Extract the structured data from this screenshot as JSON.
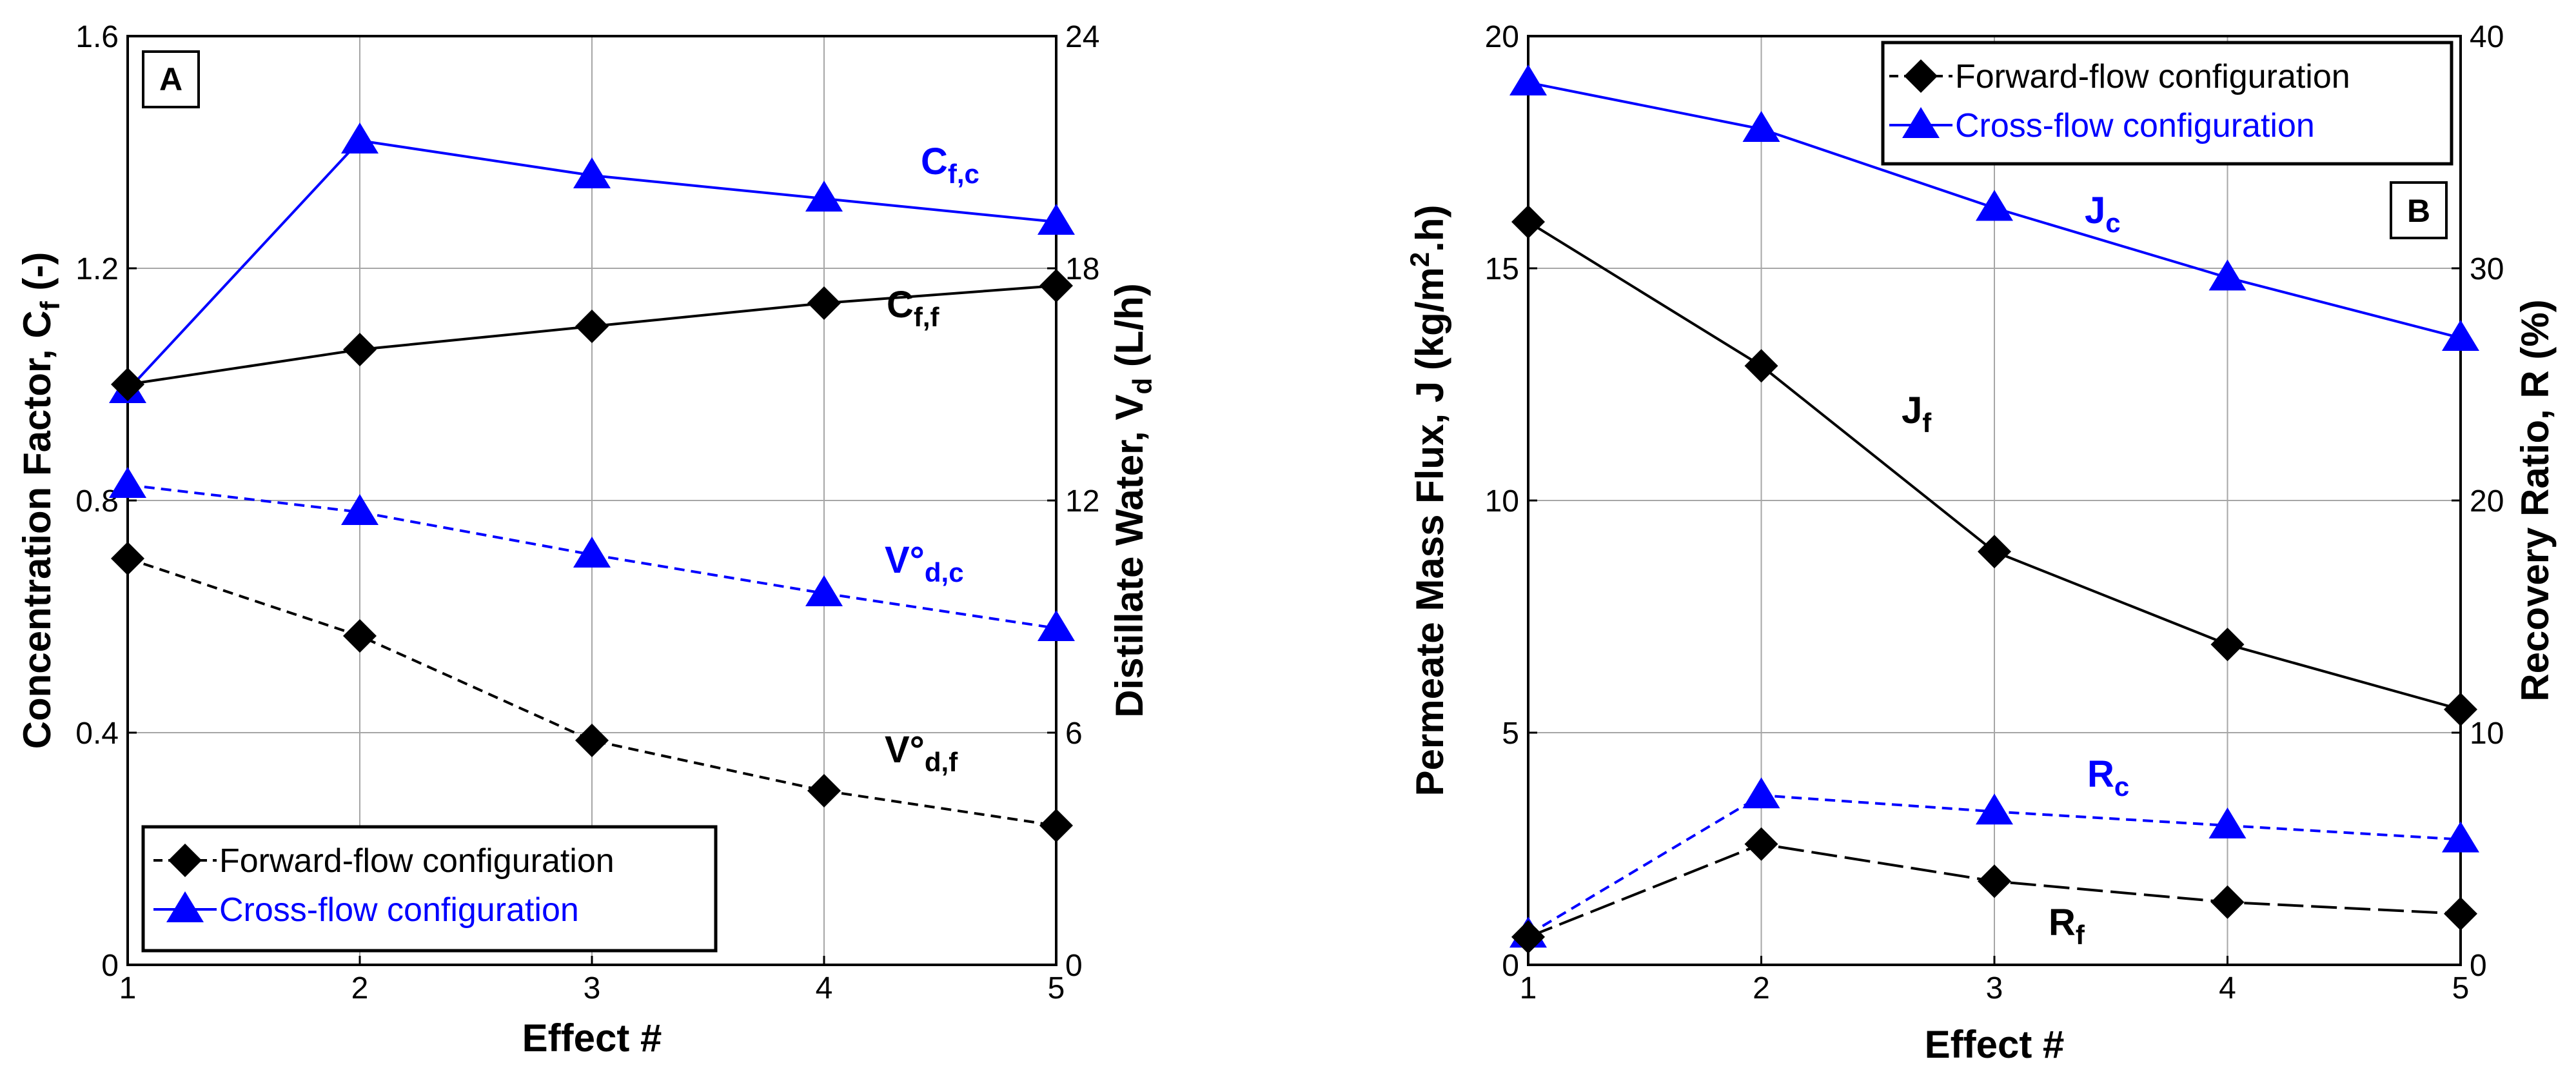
{
  "colors": {
    "blue": "#0000ff",
    "black": "#000000",
    "grid": "#a6a6a6"
  },
  "chart_data": [
    {
      "panel": "A",
      "type": "line",
      "xlabel": "Effect #",
      "xticks": [
        "1",
        "2",
        "3",
        "4",
        "5"
      ],
      "xlim": [
        1,
        5
      ],
      "left_axis": {
        "label_main": "Concentration Factor, C",
        "label_sub": "f",
        "label_tail": " (-)",
        "ylim": [
          0,
          1.6
        ],
        "ticks": [
          "0",
          "0.4",
          "0.8",
          "1.2",
          "1.6"
        ]
      },
      "right_axis": {
        "label_main": "Distillate Water, V",
        "label_sub": "d",
        "label_tail": " (L/h)",
        "ylim": [
          0,
          24
        ],
        "ticks": [
          "0",
          "6",
          "12",
          "18",
          "24"
        ]
      },
      "series": [
        {
          "name": "C_f,c",
          "axis": "left",
          "style": "solid",
          "color": "blue",
          "marker": "triangle",
          "x": [
            1,
            2,
            3,
            4,
            5
          ],
          "values": [
            0.99,
            1.42,
            1.36,
            1.32,
            1.28
          ],
          "label_main": "C",
          "label_sub": "f,c"
        },
        {
          "name": "C_f,f",
          "axis": "left",
          "style": "solid",
          "color": "black",
          "marker": "diamond",
          "x": [
            1,
            2,
            3,
            4,
            5
          ],
          "values": [
            1.0,
            1.06,
            1.1,
            1.14,
            1.17
          ],
          "label_main": "C",
          "label_sub": "f,f"
        },
        {
          "name": "V°_d,c",
          "axis": "right",
          "style": "dashed",
          "color": "blue",
          "marker": "triangle",
          "x": [
            1,
            2,
            3,
            4,
            5
          ],
          "values": [
            12.4,
            11.7,
            10.6,
            9.6,
            8.7
          ],
          "label_main": "V°",
          "label_sub": "d,c"
        },
        {
          "name": "V°_d,f",
          "axis": "right",
          "style": "dashed",
          "color": "black",
          "marker": "diamond",
          "x": [
            1,
            2,
            3,
            4,
            5
          ],
          "values": [
            10.5,
            8.5,
            5.8,
            4.5,
            3.6
          ],
          "label_main": "V°",
          "label_sub": "d,f"
        }
      ],
      "legend": {
        "position": "bottom-left",
        "entries": [
          "Forward-flow configuration",
          "Cross-flow configuration"
        ]
      }
    },
    {
      "panel": "B",
      "type": "line",
      "xlabel": "Effect #",
      "xticks": [
        "1",
        "2",
        "3",
        "4",
        "5"
      ],
      "xlim": [
        1,
        5
      ],
      "left_axis": {
        "label_main": "Permeate Mass Flux, J (kg/m",
        "label_sup": "2",
        "label_tail": ".h)",
        "ylim": [
          0,
          20
        ],
        "ticks": [
          "0",
          "5",
          "10",
          "15",
          "20"
        ]
      },
      "right_axis": {
        "label_main": "Recovery Ratio, R (%)",
        "ylim": [
          0,
          40
        ],
        "ticks": [
          "0",
          "10",
          "20",
          "30",
          "40"
        ]
      },
      "series": [
        {
          "name": "J_c",
          "axis": "left",
          "style": "solid",
          "color": "blue",
          "marker": "triangle",
          "x": [
            1,
            2,
            3,
            4,
            5
          ],
          "values": [
            19.0,
            18.0,
            16.3,
            14.8,
            13.5
          ],
          "label_main": "J",
          "label_sub": "c"
        },
        {
          "name": "J_f",
          "axis": "left",
          "style": "solid",
          "color": "black",
          "marker": "diamond",
          "x": [
            1,
            2,
            3,
            4,
            5
          ],
          "values": [
            16.0,
            12.9,
            8.9,
            6.9,
            5.5
          ],
          "label_main": "J",
          "label_sub": "f"
        },
        {
          "name": "R_c",
          "axis": "right",
          "style": "dashed",
          "color": "blue",
          "marker": "triangle",
          "x": [
            1,
            2,
            3,
            4,
            5
          ],
          "values": [
            1.3,
            7.3,
            6.6,
            6.0,
            5.4
          ],
          "label_main": "R",
          "label_sub": "c"
        },
        {
          "name": "R_f",
          "axis": "right",
          "style": "longdash",
          "color": "black",
          "marker": "diamond",
          "x": [
            1,
            2,
            3,
            4,
            5
          ],
          "values": [
            1.2,
            5.2,
            3.6,
            2.7,
            2.2
          ],
          "label_main": "R",
          "label_sub": "f"
        }
      ],
      "legend": {
        "position": "top-right",
        "entries": [
          "Forward-flow configuration",
          "Cross-flow configuration"
        ]
      }
    }
  ]
}
